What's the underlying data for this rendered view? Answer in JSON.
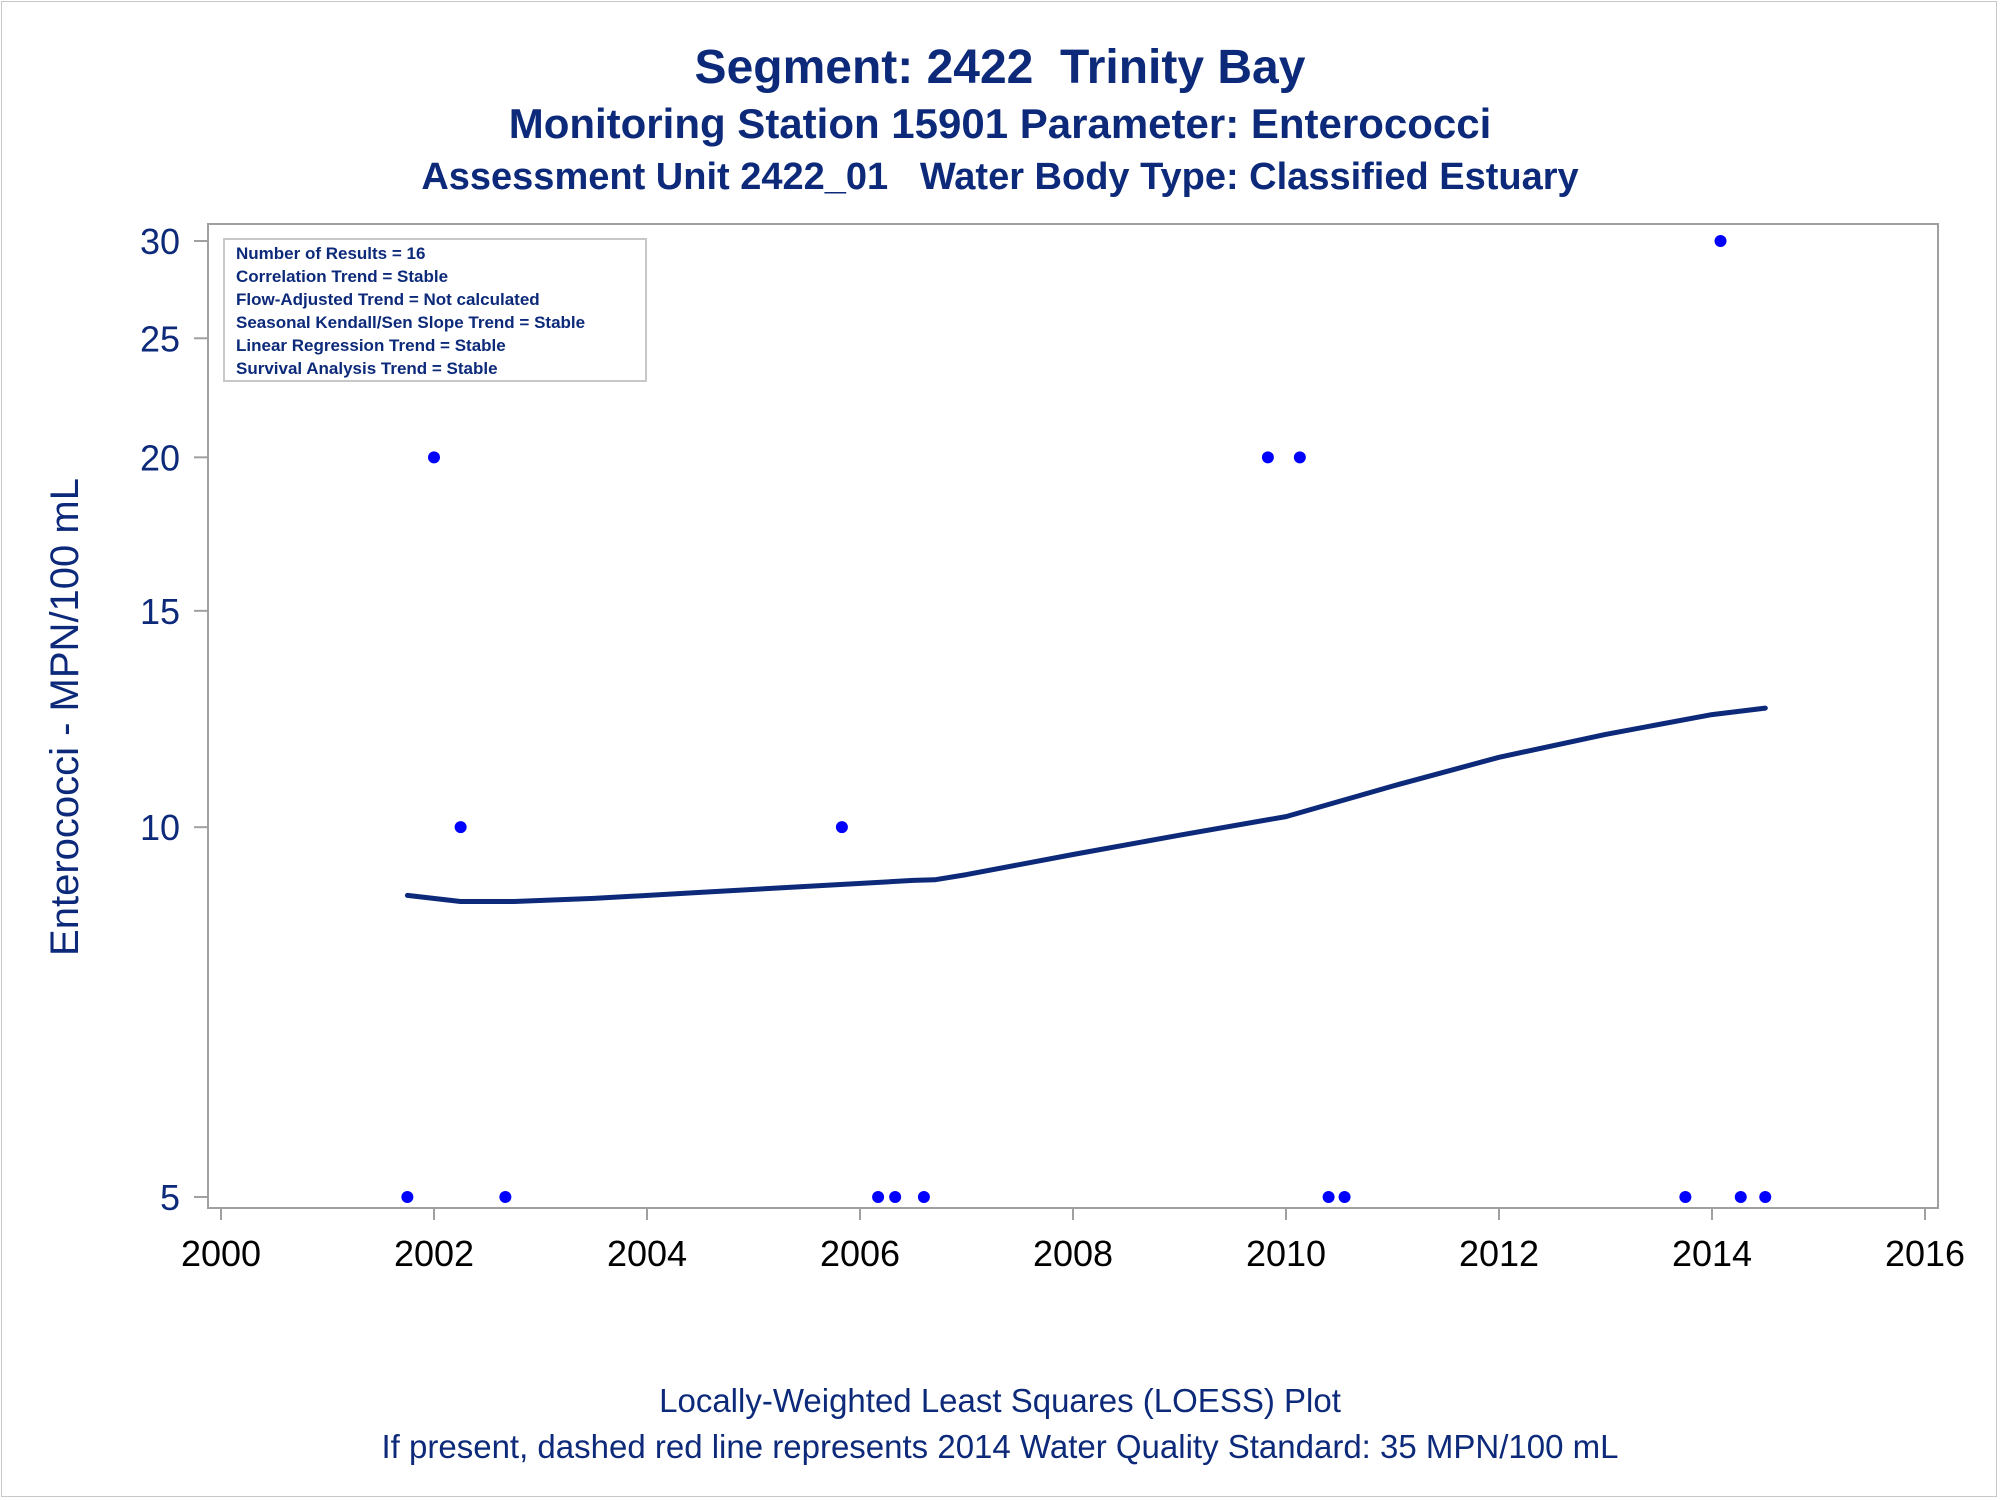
{
  "titles": {
    "line1": "Segment: 2422  Trinity Bay",
    "line2": "Monitoring Station 15901 Parameter: Enterococci",
    "line3": "Assessment Unit 2422_01   Water Body Type: Classified Estuary"
  },
  "footnotes": {
    "line1": "Locally-Weighted Least Squares (LOESS) Plot",
    "line2": "If present, dashed red line represents 2014 Water Quality Standard: 35 MPN/100 mL"
  },
  "stats_box": [
    "Number of Results = 16",
    "Correlation Trend = Stable",
    "Flow-Adjusted Trend = Not calculated",
    "Seasonal Kendall/Sen Slope Trend = Stable",
    "Linear Regression Trend = Stable",
    "Survival Analysis Trend = Stable"
  ],
  "colors": {
    "points": "#0000ff",
    "loess": "#0d2a7a",
    "text": "#0d2a7a",
    "axis": "#a0a0a0"
  },
  "chart_data": {
    "type": "scatter",
    "ylabel": "Enterococci - MPN/100 mL",
    "xlabel": "",
    "y_scale": "log",
    "xlim": [
      2000,
      2016
    ],
    "ylim": [
      4.8,
      31
    ],
    "x_ticks": [
      2000,
      2002,
      2004,
      2006,
      2008,
      2010,
      2012,
      2014,
      2016
    ],
    "y_ticks": [
      5,
      10,
      15,
      20,
      25,
      30
    ],
    "grid": false,
    "series": [
      {
        "type": "scatter",
        "points": [
          {
            "x": 2001.75,
            "y": 5
          },
          {
            "x": 2002.0,
            "y": 20
          },
          {
            "x": 2002.25,
            "y": 10
          },
          {
            "x": 2002.67,
            "y": 5
          },
          {
            "x": 2005.83,
            "y": 10
          },
          {
            "x": 2006.17,
            "y": 5
          },
          {
            "x": 2006.33,
            "y": 5
          },
          {
            "x": 2006.6,
            "y": 5
          },
          {
            "x": 2009.83,
            "y": 20
          },
          {
            "x": 2010.13,
            "y": 20
          },
          {
            "x": 2010.4,
            "y": 5
          },
          {
            "x": 2010.55,
            "y": 5
          },
          {
            "x": 2013.75,
            "y": 5
          },
          {
            "x": 2014.08,
            "y": 30
          },
          {
            "x": 2014.27,
            "y": 5
          },
          {
            "x": 2014.5,
            "y": 5
          }
        ]
      },
      {
        "type": "line",
        "points": [
          {
            "x": 2001.75,
            "y": 8.8
          },
          {
            "x": 2002.25,
            "y": 8.7
          },
          {
            "x": 2002.75,
            "y": 8.7
          },
          {
            "x": 2003.5,
            "y": 8.75
          },
          {
            "x": 2004.5,
            "y": 8.85
          },
          {
            "x": 2005.5,
            "y": 8.95
          },
          {
            "x": 2006.5,
            "y": 9.05
          },
          {
            "x": 2006.7,
            "y": 9.06
          },
          {
            "x": 2007.0,
            "y": 9.15
          },
          {
            "x": 2008.0,
            "y": 9.5
          },
          {
            "x": 2009.0,
            "y": 9.85
          },
          {
            "x": 2010.0,
            "y": 10.2
          },
          {
            "x": 2011.0,
            "y": 10.8
          },
          {
            "x": 2012.0,
            "y": 11.4
          },
          {
            "x": 2013.0,
            "y": 11.9
          },
          {
            "x": 2014.0,
            "y": 12.35
          },
          {
            "x": 2014.5,
            "y": 12.5
          }
        ]
      }
    ]
  }
}
